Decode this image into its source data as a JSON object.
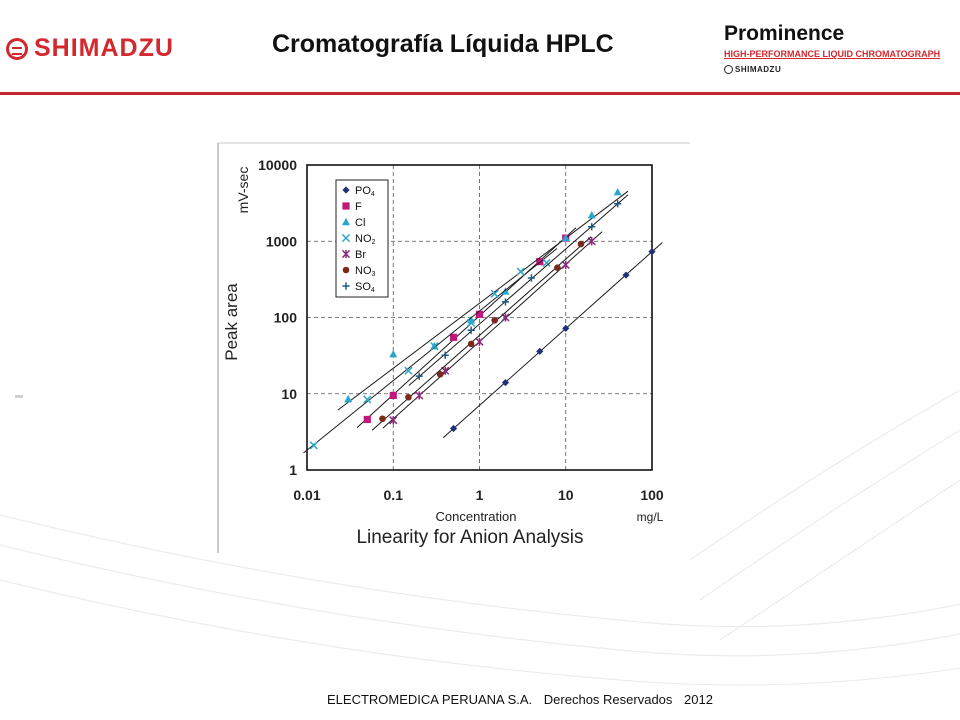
{
  "header": {
    "brand": "SHIMADZU",
    "title": "Cromatografía Líquida HPLC",
    "product_name": "Prominence",
    "product_subtitle": "HIGH-PERFORMANCE LIQUID CHROMATOGRAPH",
    "product_brand": "SHIMADZU"
  },
  "footer": {
    "company": "ELECTROMEDICA PERUANA S.A.",
    "rights": "Derechos Reservados",
    "year": "2012"
  },
  "colors": {
    "brand_red": "#d2282e",
    "rule_red": "#c0282d"
  },
  "chart_data": {
    "type": "scatter",
    "title": "Linearity for Anion Analysis",
    "xlabel": "Concentration",
    "x_unit": "mg/L",
    "ylabel": "Peak area",
    "y_unit": "mV-sec",
    "x_scale": "log",
    "y_scale": "log",
    "xlim": [
      0.01,
      100
    ],
    "ylim": [
      1,
      10000
    ],
    "x_ticks": [
      "0.01",
      "0.1",
      "1",
      "10",
      "100"
    ],
    "y_ticks": [
      "1",
      "10",
      "100",
      "1000",
      "10000"
    ],
    "grid": "dashed at decades",
    "legend_position": "top-left",
    "trendlines": true,
    "series": [
      {
        "name": "PO4",
        "label_main": "PO",
        "label_sub": "4",
        "marker": "diamond",
        "color": "#22307a",
        "x": [
          0.5,
          2,
          5,
          10,
          50,
          100
        ],
        "y": [
          3.5,
          14,
          36,
          72,
          360,
          730
        ]
      },
      {
        "name": "F",
        "label_main": "F",
        "label_sub": "",
        "marker": "square",
        "color": "#c2187a",
        "x": [
          0.05,
          0.1,
          0.5,
          1,
          5,
          10
        ],
        "y": [
          4.6,
          9.5,
          55,
          110,
          540,
          1100
        ]
      },
      {
        "name": "Cl",
        "label_main": "Cl",
        "label_sub": "",
        "marker": "triangle",
        "color": "#2aa7cf",
        "x": [
          0.03,
          0.1,
          0.3,
          0.8,
          2,
          10,
          20,
          40
        ],
        "y": [
          8.5,
          33,
          42,
          92,
          220,
          1100,
          2200,
          4400
        ]
      },
      {
        "name": "NO2",
        "label_main": "NO",
        "label_sub": "2",
        "marker": "x",
        "color": "#2aa7cf",
        "x": [
          0.012,
          0.05,
          0.15,
          0.3,
          0.8,
          1.5,
          3,
          6
        ],
        "y": [
          2.1,
          8.4,
          20,
          42,
          85,
          205,
          400,
          520
        ]
      },
      {
        "name": "Br",
        "label_main": "Br",
        "label_sub": "",
        "marker": "asterisk",
        "color": "#8a2a7a",
        "x": [
          0.1,
          0.2,
          0.4,
          1,
          2,
          10,
          20
        ],
        "y": [
          4.5,
          9.5,
          20,
          48,
          100,
          490,
          1000
        ]
      },
      {
        "name": "NO3",
        "label_main": "NO",
        "label_sub": "3",
        "marker": "circle",
        "color": "#7a2a1a",
        "x": [
          0.075,
          0.15,
          0.35,
          0.8,
          1.5,
          8,
          15
        ],
        "y": [
          4.7,
          9,
          18,
          45,
          92,
          450,
          920
        ]
      },
      {
        "name": "SO4",
        "label_main": "SO",
        "label_sub": "4",
        "marker": "plus",
        "color": "#1a5a8a",
        "x": [
          0.2,
          0.4,
          0.8,
          2,
          4,
          20,
          40
        ],
        "y": [
          17,
          32,
          68,
          160,
          330,
          1550,
          3100
        ]
      }
    ]
  }
}
